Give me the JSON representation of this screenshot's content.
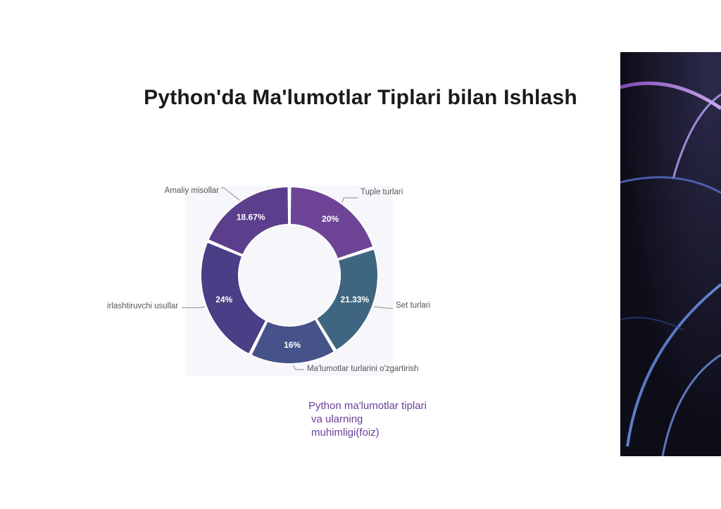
{
  "slide": {
    "title": "Python'da Ma'lumotlar Tiplari bilan Ishlash",
    "caption_lines": [
      "Python ma'lumotlar tiplari",
      "va ularning",
      "muhimligi(foiz)"
    ]
  },
  "chart_data": {
    "type": "pie",
    "variant": "donut",
    "slices": [
      {
        "label": "Tuple turlari",
        "value": 20,
        "value_label": "20%",
        "color": "#6e4596"
      },
      {
        "label": "Set turlari",
        "value": 21.33,
        "value_label": "21.33%",
        "color": "#3f6680"
      },
      {
        "label": "Ma'lumotlar turlarini o'zgartirish",
        "value": 16,
        "value_label": "16%",
        "color": "#46528a"
      },
      {
        "label": "irlashtiruvchi usullar",
        "value": 24,
        "value_label": "24%",
        "color": "#4b3e86"
      },
      {
        "label": "Amaliy misollar",
        "value": 18.67,
        "value_label": "18.67%",
        "color": "#5b3f8c"
      }
    ],
    "start": "top, clockwise",
    "legend": "none (leader-line labels)"
  },
  "colors": {
    "leader_line": "#8a8a8a",
    "label_text": "#555555",
    "value_text": "#ffffff",
    "chart_background": "#f7f6fb"
  },
  "decorations": {
    "right_panel": "abstract-dark-curves-image"
  }
}
